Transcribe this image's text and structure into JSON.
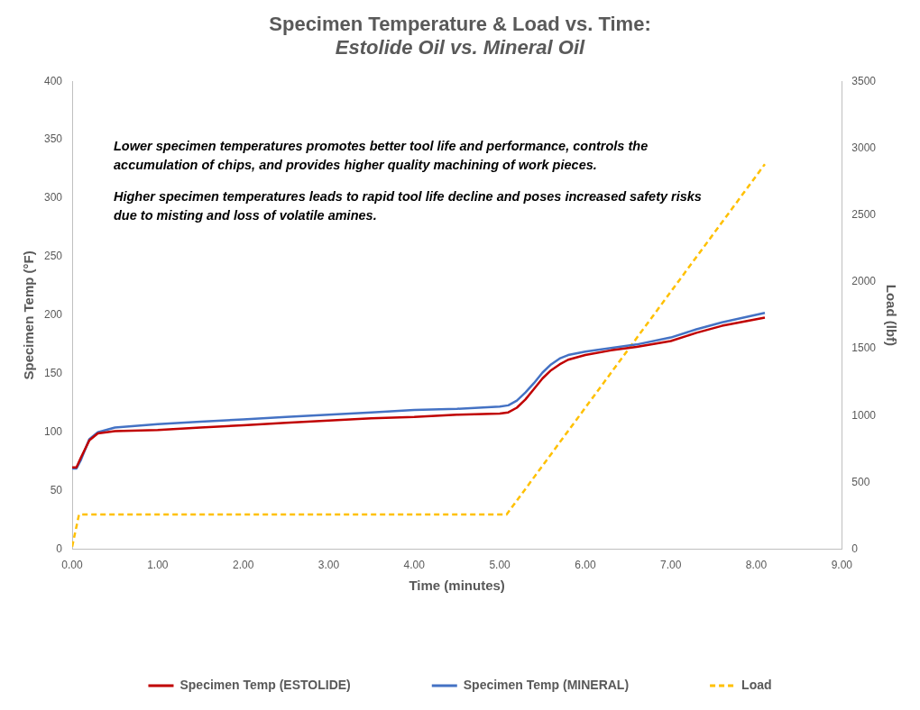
{
  "chart_data": {
    "type": "line",
    "title": "Specimen Temperature & Load vs. Time:",
    "subtitle": "Estolide Oil vs. Mineral Oil",
    "xlabel": "Time (minutes)",
    "ylabel": "Specimen Temp (°F)",
    "y2label": "Load (lbf)",
    "xlim": [
      0,
      9
    ],
    "xticks": [
      {
        "value": 0,
        "label": "0.00"
      },
      {
        "value": 1,
        "label": "1.00"
      },
      {
        "value": 2,
        "label": "2.00"
      },
      {
        "value": 3,
        "label": "3.00"
      },
      {
        "value": 4,
        "label": "4.00"
      },
      {
        "value": 5,
        "label": "5.00"
      },
      {
        "value": 6,
        "label": "6.00"
      },
      {
        "value": 7,
        "label": "7.00"
      },
      {
        "value": 8,
        "label": "8.00"
      },
      {
        "value": 9,
        "label": "9.00"
      }
    ],
    "ylim": [
      0,
      400
    ],
    "yticks": [
      0,
      50,
      100,
      150,
      200,
      250,
      300,
      350,
      400
    ],
    "y2lim": [
      0,
      3500
    ],
    "y2ticks": [
      0,
      500,
      1000,
      1500,
      2000,
      2500,
      3000,
      3500
    ],
    "grid": false,
    "legend": "bottom",
    "marker": "none",
    "annotations": [
      "Lower specimen temperatures promotes better tool life and performance, controls the accumulation of chips, and provides higher quality machining of work pieces.",
      "Higher specimen temperatures leads to rapid tool life decline and poses increased safety risks due to misting and loss of volatile amines."
    ],
    "series": [
      {
        "name": "Specimen Temp (ESTOLIDE)",
        "color": "#c00000",
        "line_style": "solid",
        "x": [
          0,
          0.05,
          0.1,
          0.2,
          0.3,
          0.5,
          1,
          1.5,
          2,
          2.5,
          3,
          3.5,
          4,
          4.5,
          5,
          5.1,
          5.2,
          5.3,
          5.4,
          5.5,
          5.6,
          5.7,
          5.8,
          6,
          6.3,
          6.6,
          7,
          7.3,
          7.6,
          8.1
        ],
        "values": [
          70,
          70,
          78,
          93,
          99,
          101,
          102,
          104,
          106,
          108,
          110,
          112,
          113,
          115,
          116,
          117,
          121,
          128,
          137,
          146,
          153,
          158,
          162,
          166,
          170,
          173,
          178,
          185,
          191,
          198
        ]
      },
      {
        "name": "Specimen Temp (MINERAL)",
        "color": "#4472c4",
        "line_style": "solid",
        "x": [
          0,
          0.05,
          0.1,
          0.2,
          0.3,
          0.5,
          1,
          1.5,
          2,
          2.5,
          3,
          3.5,
          4,
          4.5,
          5,
          5.1,
          5.2,
          5.3,
          5.4,
          5.5,
          5.6,
          5.7,
          5.8,
          6,
          6.3,
          6.6,
          7,
          7.3,
          7.6,
          8.1
        ],
        "values": [
          69,
          69,
          76,
          94,
          100,
          104,
          107,
          109,
          111,
          113,
          115,
          117,
          119,
          120,
          122,
          123,
          127,
          134,
          142,
          151,
          158,
          163,
          166,
          169,
          172,
          175,
          181,
          188,
          194,
          202
        ]
      },
      {
        "name": "Load",
        "color": "#ffc000",
        "line_style": "dashed",
        "axis": "y2",
        "x": [
          0,
          0.08,
          5.08,
          8.1
        ],
        "values": [
          20,
          260,
          260,
          2880
        ]
      }
    ]
  }
}
